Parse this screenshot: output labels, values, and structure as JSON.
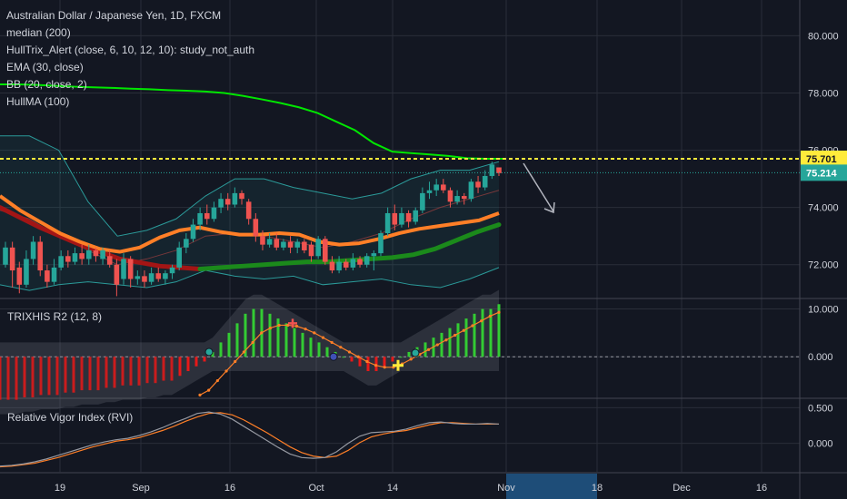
{
  "header": {
    "title": "Australian Dollar / Japanese Yen, 1D, FXCM",
    "indicators": [
      "median (200)",
      "HullTrix_Alert (close, 6, 10, 12, 10): study_not_auth",
      "EMA (30, close)",
      "BB (20, close, 2)",
      "HullMA (100)"
    ]
  },
  "colors": {
    "background": "#131722",
    "grid": "#2a2e39",
    "up_candle": "#26a69a",
    "down_candle": "#ef5350",
    "median": "#00e600",
    "ema": "#ff7f27",
    "hull_down": "#a31515",
    "hull_up": "#1b8a1b",
    "bb": "#2b9a99",
    "level_line": "#ffeb3b",
    "last_price": "#26a69a",
    "trix_up": "#33cc33",
    "trix_down": "#e61919",
    "trix_signal": "#ff7f27",
    "rvi_main": "#9598a1",
    "rvi_signal": "#ff7f27",
    "time_highlight": "#1e4d78",
    "arrow": "#b2b5be"
  },
  "chart_data": [
    {
      "type": "candlestick",
      "title": "Australian Dollar / Japanese Yen, 1D, FXCM",
      "ylim": [
        70.85,
        81.25
      ],
      "y_ticks": [
        "80.000",
        "78.000",
        "76.000",
        "74.000",
        "72.000"
      ],
      "price_labels": [
        {
          "text": "75.701",
          "value": 75.701,
          "kind": "level"
        },
        {
          "text": "75.214",
          "value": 75.214,
          "kind": "last"
        }
      ],
      "candles": [
        {
          "o": 72.0,
          "c": 72.6,
          "h": 72.8,
          "l": 71.9
        },
        {
          "o": 72.6,
          "c": 71.8,
          "h": 72.8,
          "l": 71.2
        },
        {
          "o": 71.9,
          "c": 71.3,
          "h": 72.1,
          "l": 71.0
        },
        {
          "o": 71.3,
          "c": 72.2,
          "h": 72.5,
          "l": 71.2
        },
        {
          "o": 72.2,
          "c": 72.8,
          "h": 73.0,
          "l": 72.0
        },
        {
          "o": 72.8,
          "c": 71.8,
          "h": 73.0,
          "l": 71.6
        },
        {
          "o": 71.8,
          "c": 71.4,
          "h": 72.0,
          "l": 71.2
        },
        {
          "o": 71.4,
          "c": 71.9,
          "h": 72.2,
          "l": 71.3
        },
        {
          "o": 71.9,
          "c": 72.3,
          "h": 72.5,
          "l": 71.8
        },
        {
          "o": 72.3,
          "c": 72.1,
          "h": 72.5,
          "l": 71.9
        },
        {
          "o": 72.1,
          "c": 72.4,
          "h": 72.6,
          "l": 72.0
        },
        {
          "o": 72.4,
          "c": 72.2,
          "h": 72.7,
          "l": 72.0
        },
        {
          "o": 72.2,
          "c": 72.5,
          "h": 72.7,
          "l": 72.0
        },
        {
          "o": 72.5,
          "c": 72.3,
          "h": 72.6,
          "l": 72.1
        },
        {
          "o": 72.2,
          "c": 72.5,
          "h": 72.6,
          "l": 72.0
        },
        {
          "o": 72.3,
          "c": 72.0,
          "h": 72.5,
          "l": 71.9
        },
        {
          "o": 72.0,
          "c": 71.3,
          "h": 72.2,
          "l": 70.9
        },
        {
          "o": 71.5,
          "c": 72.2,
          "h": 72.4,
          "l": 71.3
        },
        {
          "o": 72.2,
          "c": 71.5,
          "h": 72.3,
          "l": 71.2
        },
        {
          "o": 71.5,
          "c": 71.6,
          "h": 71.8,
          "l": 71.3
        },
        {
          "o": 71.6,
          "c": 71.4,
          "h": 71.8,
          "l": 71.2
        },
        {
          "o": 71.4,
          "c": 71.7,
          "h": 71.9,
          "l": 71.3
        },
        {
          "o": 71.7,
          "c": 71.5,
          "h": 71.9,
          "l": 71.4
        },
        {
          "o": 71.5,
          "c": 71.7,
          "h": 71.8,
          "l": 71.3
        },
        {
          "o": 71.7,
          "c": 71.9,
          "h": 72.0,
          "l": 71.5
        },
        {
          "o": 71.9,
          "c": 72.6,
          "h": 72.8,
          "l": 71.8
        },
        {
          "o": 72.6,
          "c": 72.9,
          "h": 73.1,
          "l": 72.4
        },
        {
          "o": 72.9,
          "c": 73.4,
          "h": 73.6,
          "l": 72.8
        },
        {
          "o": 73.4,
          "c": 73.8,
          "h": 74.0,
          "l": 73.2
        },
        {
          "o": 73.8,
          "c": 73.6,
          "h": 74.1,
          "l": 73.4
        },
        {
          "o": 73.6,
          "c": 74.0,
          "h": 74.2,
          "l": 73.5
        },
        {
          "o": 74.0,
          "c": 74.3,
          "h": 74.5,
          "l": 73.8
        },
        {
          "o": 74.3,
          "c": 74.1,
          "h": 74.5,
          "l": 73.9
        },
        {
          "o": 74.1,
          "c": 74.5,
          "h": 74.7,
          "l": 74.0
        },
        {
          "o": 74.5,
          "c": 74.3,
          "h": 74.6,
          "l": 74.1
        },
        {
          "o": 74.2,
          "c": 73.6,
          "h": 74.3,
          "l": 73.4
        },
        {
          "o": 73.6,
          "c": 73.0,
          "h": 73.8,
          "l": 72.8
        },
        {
          "o": 73.0,
          "c": 72.7,
          "h": 73.2,
          "l": 72.5
        },
        {
          "o": 72.7,
          "c": 72.9,
          "h": 73.1,
          "l": 72.6
        },
        {
          "o": 72.9,
          "c": 72.6,
          "h": 73.1,
          "l": 72.5
        },
        {
          "o": 72.6,
          "c": 72.8,
          "h": 72.9,
          "l": 72.5
        },
        {
          "o": 72.8,
          "c": 72.6,
          "h": 73.0,
          "l": 72.4
        },
        {
          "o": 72.6,
          "c": 72.8,
          "h": 72.9,
          "l": 72.4
        },
        {
          "o": 72.8,
          "c": 72.5,
          "h": 72.9,
          "l": 72.4
        },
        {
          "o": 72.7,
          "c": 72.3,
          "h": 72.8,
          "l": 72.1
        },
        {
          "o": 72.3,
          "c": 72.9,
          "h": 73.0,
          "l": 72.2
        },
        {
          "o": 72.9,
          "c": 72.1,
          "h": 73.0,
          "l": 72.0
        },
        {
          "o": 72.1,
          "c": 71.8,
          "h": 72.3,
          "l": 71.7
        },
        {
          "o": 71.8,
          "c": 72.1,
          "h": 72.3,
          "l": 71.7
        },
        {
          "o": 72.1,
          "c": 71.9,
          "h": 72.2,
          "l": 71.8
        },
        {
          "o": 71.9,
          "c": 72.2,
          "h": 72.4,
          "l": 71.8
        },
        {
          "o": 72.2,
          "c": 72.0,
          "h": 72.3,
          "l": 71.9
        },
        {
          "o": 72.0,
          "c": 72.3,
          "h": 72.4,
          "l": 71.9
        },
        {
          "o": 72.3,
          "c": 72.4,
          "h": 72.5,
          "l": 71.8
        },
        {
          "o": 72.4,
          "c": 73.1,
          "h": 73.2,
          "l": 72.3
        },
        {
          "o": 73.1,
          "c": 73.8,
          "h": 74.0,
          "l": 73.0
        },
        {
          "o": 73.8,
          "c": 73.4,
          "h": 74.1,
          "l": 73.2
        },
        {
          "o": 73.4,
          "c": 73.8,
          "h": 74.0,
          "l": 73.3
        },
        {
          "o": 73.8,
          "c": 73.5,
          "h": 73.9,
          "l": 73.3
        },
        {
          "o": 73.5,
          "c": 73.9,
          "h": 74.0,
          "l": 73.4
        },
        {
          "o": 73.9,
          "c": 74.5,
          "h": 74.7,
          "l": 73.8
        },
        {
          "o": 74.5,
          "c": 74.6,
          "h": 74.9,
          "l": 74.3
        },
        {
          "o": 74.6,
          "c": 74.8,
          "h": 75.0,
          "l": 74.4
        },
        {
          "o": 74.8,
          "c": 74.6,
          "h": 75.0,
          "l": 74.5
        },
        {
          "o": 74.6,
          "c": 74.2,
          "h": 74.7,
          "l": 74.0
        },
        {
          "o": 74.2,
          "c": 74.4,
          "h": 74.6,
          "l": 74.1
        },
        {
          "o": 74.4,
          "c": 74.3,
          "h": 74.5,
          "l": 74.1
        },
        {
          "o": 74.3,
          "c": 74.9,
          "h": 75.0,
          "l": 74.2
        },
        {
          "o": 74.9,
          "c": 74.7,
          "h": 75.1,
          "l": 74.5
        },
        {
          "o": 74.7,
          "c": 75.1,
          "h": 75.3,
          "l": 74.6
        },
        {
          "o": 75.1,
          "c": 75.5,
          "h": 75.6,
          "l": 75.0
        },
        {
          "o": 75.4,
          "c": 75.2,
          "h": 75.4,
          "l": 75.1
        }
      ],
      "median": [
        78.3,
        78.3,
        78.28,
        78.25,
        78.22,
        78.2,
        78.18,
        78.15,
        78.13,
        78.1,
        78.08,
        78.05,
        78.0,
        77.9,
        77.78,
        77.65,
        77.5,
        77.3,
        77.0,
        76.7,
        76.25,
        75.95,
        75.9,
        75.85,
        75.8,
        75.72,
        75.7,
        75.7
      ],
      "ema": [
        74.4,
        73.9,
        73.5,
        73.1,
        72.8,
        72.55,
        72.45,
        72.6,
        72.95,
        73.2,
        73.3,
        73.15,
        73.05,
        73.05,
        73.1,
        73.05,
        72.8,
        72.7,
        72.75,
        72.9,
        73.1,
        73.25,
        73.35,
        73.45,
        73.55,
        73.8
      ],
      "hull_red": [
        74.0,
        73.3,
        72.7,
        72.2,
        71.95,
        71.85
      ],
      "hull_green": [
        71.85,
        71.9,
        71.95,
        72.0,
        72.05,
        72.1,
        72.1,
        72.15,
        72.2,
        72.25,
        72.35,
        72.55,
        72.85,
        73.15,
        73.4
      ],
      "bb_upper": [
        76.5,
        76.5,
        76.0,
        74.2,
        73.0,
        73.2,
        73.6,
        74.4,
        75.0,
        75.0,
        74.7,
        74.5,
        74.3,
        74.5,
        75.0,
        75.3,
        75.3,
        75.6
      ],
      "bb_lower": [
        71.3,
        71.1,
        71.3,
        71.4,
        71.3,
        71.2,
        71.4,
        71.8,
        71.6,
        71.5,
        71.6,
        71.3,
        71.4,
        71.5,
        71.3,
        71.2,
        71.5,
        71.9
      ],
      "bb_mid": [
        73.9,
        73.6,
        73.0,
        72.5,
        72.0,
        72.2,
        72.5,
        73.0,
        73.1,
        73.0,
        72.8,
        72.6,
        72.8,
        73.1,
        73.6,
        74.0,
        74.3,
        74.6
      ],
      "arrow_note": "arrow-down"
    },
    {
      "type": "bar",
      "title": "TRIXHIS R2 (12, 8)",
      "ylim": [
        -8.5,
        12.0
      ],
      "y_ticks": [
        "10.000",
        "0.000"
      ],
      "histogram": [
        -9,
        -9,
        -9,
        -8.5,
        -8.5,
        -8,
        -8,
        -8,
        -7.5,
        -7.5,
        -7,
        -7,
        -7,
        -6.5,
        -6.5,
        -6,
        -6,
        -6,
        -5.5,
        -5.5,
        -5,
        -5,
        -4,
        -3,
        -2,
        -1,
        1,
        3,
        5,
        7,
        9,
        10,
        10,
        9,
        8,
        7,
        6,
        5,
        4,
        3,
        2,
        1,
        0,
        -1,
        -2,
        -3,
        -3,
        -2,
        -1,
        0,
        1,
        2,
        3,
        4,
        5,
        6,
        7,
        8,
        9,
        10,
        10,
        11
      ],
      "signal": [
        -8,
        -7,
        -5,
        -3,
        -1,
        1,
        3,
        5,
        6,
        6.6,
        6.6,
        6.4,
        5.8,
        5.0,
        4.0,
        3.0,
        2.0,
        1.0,
        0.0,
        -1.0,
        -1.8,
        -2.2,
        -2.2,
        -1.5,
        -0.5,
        0.5,
        1.5,
        2.5,
        3.5,
        4.5,
        5.5,
        6.5,
        7.5,
        8.5,
        9.3
      ]
    },
    {
      "type": "line",
      "title": "Relative Vigor Index (RVI)",
      "ylim": [
        -0.4,
        0.62
      ],
      "y_ticks": [
        "0.500",
        "0.000"
      ],
      "series": [
        {
          "name": "",
          "values": [
            -0.32,
            -0.31,
            -0.29,
            -0.26,
            -0.22,
            -0.17,
            -0.12,
            -0.07,
            -0.02,
            0.02,
            0.05,
            0.07,
            0.11,
            0.16,
            0.22,
            0.29,
            0.35,
            0.42,
            0.44,
            0.41,
            0.34,
            0.24,
            0.14,
            0.04,
            -0.06,
            -0.15,
            -0.2,
            -0.21,
            -0.2,
            -0.12,
            0.0,
            0.1,
            0.15,
            0.16,
            0.17,
            0.2,
            0.25,
            0.29,
            0.3,
            0.28,
            0.27,
            0.27,
            0.28,
            0.27
          ]
        },
        {
          "name": "",
          "values": [
            -0.33,
            -0.32,
            -0.3,
            -0.28,
            -0.24,
            -0.2,
            -0.15,
            -0.1,
            -0.05,
            -0.01,
            0.03,
            0.05,
            0.08,
            0.13,
            0.18,
            0.24,
            0.31,
            0.37,
            0.42,
            0.43,
            0.4,
            0.33,
            0.24,
            0.15,
            0.05,
            -0.05,
            -0.13,
            -0.18,
            -0.2,
            -0.18,
            -0.1,
            0.01,
            0.09,
            0.13,
            0.16,
            0.18,
            0.22,
            0.26,
            0.29,
            0.29,
            0.28,
            0.27,
            0.27,
            0.27
          ]
        }
      ]
    }
  ],
  "time_axis": {
    "labels": [
      "19",
      "Sep",
      "16",
      "Oct",
      "14",
      "Nov",
      "18",
      "Dec",
      "16"
    ],
    "highlight": "Nov"
  }
}
